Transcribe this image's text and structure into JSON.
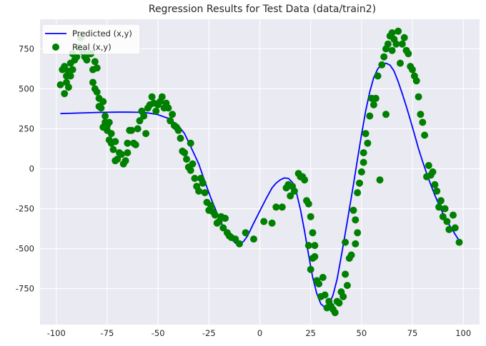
{
  "chart_data": {
    "type": "scatter",
    "title": "Regression Results for Test Data (data/train2)",
    "xlabel": "",
    "ylabel": "",
    "xlim": [
      -108,
      108
    ],
    "ylim": [
      -975,
      935
    ],
    "xticks": [
      -100,
      -75,
      -50,
      -25,
      0,
      25,
      50,
      75,
      100
    ],
    "yticks": [
      -750,
      -500,
      -250,
      0,
      250,
      500,
      750
    ],
    "grid": true,
    "legend_position": "top-left",
    "colors": {
      "background": "#eaeaf2",
      "grid": "#ffffff",
      "line": "#0000ff",
      "points": "#008000"
    },
    "series": [
      {
        "name": "Predicted (x,y)",
        "kind": "line",
        "x": [
          -98,
          -95,
          -90,
          -85,
          -80,
          -75,
          -70,
          -65,
          -60,
          -55,
          -50,
          -45,
          -40,
          -37,
          -34,
          -30,
          -27,
          -24,
          -20,
          -17,
          -14,
          -12,
          -10,
          -8,
          -6,
          -3,
          0,
          3,
          6,
          8,
          10,
          12,
          14,
          16,
          18,
          20,
          22,
          24,
          26,
          28,
          30,
          32,
          34,
          36,
          38,
          40,
          43,
          46,
          48,
          50,
          52,
          54,
          56,
          58,
          60,
          62,
          64,
          66,
          68,
          70,
          72,
          74,
          76,
          78,
          80,
          82,
          84,
          86,
          88,
          90,
          93,
          96,
          98
        ],
        "y": [
          345,
          346,
          348,
          350,
          352,
          353,
          354,
          354,
          353,
          349,
          338,
          315,
          270,
          220,
          140,
          30,
          -80,
          -185,
          -310,
          -390,
          -440,
          -465,
          -470,
          -455,
          -420,
          -340,
          -265,
          -190,
          -120,
          -90,
          -70,
          -58,
          -60,
          -85,
          -150,
          -255,
          -390,
          -540,
          -680,
          -780,
          -845,
          -868,
          -850,
          -790,
          -690,
          -550,
          -330,
          -100,
          60,
          215,
          360,
          480,
          570,
          625,
          652,
          660,
          648,
          610,
          545,
          470,
          390,
          305,
          215,
          125,
          45,
          -30,
          -100,
          -165,
          -225,
          -280,
          -350,
          -410,
          -450
        ]
      },
      {
        "name": "Real (x,y)",
        "kind": "scatter",
        "points": [
          [
            -98,
            525
          ],
          [
            -97,
            620
          ],
          [
            -96,
            640
          ],
          [
            -96,
            470
          ],
          [
            -95,
            580
          ],
          [
            -95,
            540
          ],
          [
            -94,
            610
          ],
          [
            -94,
            510
          ],
          [
            -93,
            660
          ],
          [
            -93,
            580
          ],
          [
            -92,
            720
          ],
          [
            -92,
            620
          ],
          [
            -91,
            680
          ],
          [
            -90,
            700
          ],
          [
            -89,
            760
          ],
          [
            -88,
            820
          ],
          [
            -87,
            730
          ],
          [
            -86,
            700
          ],
          [
            -85,
            680
          ],
          [
            -84,
            720
          ],
          [
            -83,
            720
          ],
          [
            -82,
            620
          ],
          [
            -82,
            540
          ],
          [
            -81,
            670
          ],
          [
            -81,
            500
          ],
          [
            -80,
            630
          ],
          [
            -80,
            480
          ],
          [
            -79,
            440
          ],
          [
            -79,
            390
          ],
          [
            -78,
            380
          ],
          [
            -77,
            420
          ],
          [
            -77,
            260
          ],
          [
            -76,
            290
          ],
          [
            -76,
            330
          ],
          [
            -75,
            270
          ],
          [
            -75,
            240
          ],
          [
            -74,
            180
          ],
          [
            -74,
            290
          ],
          [
            -73,
            160
          ],
          [
            -73,
            220
          ],
          [
            -72,
            120
          ],
          [
            -71,
            170
          ],
          [
            -71,
            50
          ],
          [
            -70,
            60
          ],
          [
            -69,
            100
          ],
          [
            -68,
            90
          ],
          [
            -67,
            30
          ],
          [
            -66,
            50
          ],
          [
            -65,
            100
          ],
          [
            -65,
            160
          ],
          [
            -64,
            240
          ],
          [
            -63,
            240
          ],
          [
            -62,
            160
          ],
          [
            -61,
            150
          ],
          [
            -60,
            250
          ],
          [
            -59,
            300
          ],
          [
            -58,
            360
          ],
          [
            -57,
            330
          ],
          [
            -56,
            220
          ],
          [
            -55,
            380
          ],
          [
            -54,
            400
          ],
          [
            -53,
            450
          ],
          [
            -52,
            410
          ],
          [
            -51,
            360
          ],
          [
            -50,
            400
          ],
          [
            -49,
            420
          ],
          [
            -48,
            450
          ],
          [
            -47,
            380
          ],
          [
            -46,
            410
          ],
          [
            -45,
            380
          ],
          [
            -44,
            300
          ],
          [
            -43,
            340
          ],
          [
            -42,
            270
          ],
          [
            -41,
            260
          ],
          [
            -40,
            240
          ],
          [
            -39,
            190
          ],
          [
            -38,
            110
          ],
          [
            -37,
            100
          ],
          [
            -36,
            60
          ],
          [
            -35,
            10
          ],
          [
            -34,
            -10
          ],
          [
            -34,
            160
          ],
          [
            -33,
            30
          ],
          [
            -32,
            -60
          ],
          [
            -31,
            -110
          ],
          [
            -30,
            -140
          ],
          [
            -29,
            -60
          ],
          [
            -28,
            -90
          ],
          [
            -27,
            -150
          ],
          [
            -26,
            -210
          ],
          [
            -25,
            -260
          ],
          [
            -24,
            -230
          ],
          [
            -23,
            -270
          ],
          [
            -22,
            -290
          ],
          [
            -21,
            -340
          ],
          [
            -20,
            -330
          ],
          [
            -19,
            -300
          ],
          [
            -18,
            -370
          ],
          [
            -17,
            -310
          ],
          [
            -16,
            -400
          ],
          [
            -15,
            -420
          ],
          [
            -14,
            -430
          ],
          [
            -12,
            -440
          ],
          [
            -10,
            -470
          ],
          [
            -7,
            -400
          ],
          [
            -3,
            -440
          ],
          [
            2,
            -330
          ],
          [
            6,
            -340
          ],
          [
            8,
            -240
          ],
          [
            11,
            -240
          ],
          [
            13,
            -120
          ],
          [
            14,
            -100
          ],
          [
            15,
            -170
          ],
          [
            16,
            -110
          ],
          [
            17,
            -140
          ],
          [
            19,
            -30
          ],
          [
            20,
            -50
          ],
          [
            21,
            -50
          ],
          [
            22,
            -70
          ],
          [
            23,
            -200
          ],
          [
            24,
            -220
          ],
          [
            24,
            -480
          ],
          [
            25,
            -300
          ],
          [
            25,
            -630
          ],
          [
            26,
            -400
          ],
          [
            26,
            -560
          ],
          [
            27,
            -480
          ],
          [
            27,
            -550
          ],
          [
            28,
            -700
          ],
          [
            29,
            -720
          ],
          [
            30,
            -800
          ],
          [
            31,
            -680
          ],
          [
            32,
            -790
          ],
          [
            33,
            -870
          ],
          [
            34,
            -830
          ],
          [
            35,
            -860
          ],
          [
            36,
            -880
          ],
          [
            37,
            -900
          ],
          [
            38,
            -830
          ],
          [
            39,
            -840
          ],
          [
            40,
            -770
          ],
          [
            41,
            -800
          ],
          [
            42,
            -660
          ],
          [
            42,
            -460
          ],
          [
            43,
            -730
          ],
          [
            44,
            -560
          ],
          [
            45,
            -540
          ],
          [
            46,
            -260
          ],
          [
            47,
            -320
          ],
          [
            47,
            -470
          ],
          [
            48,
            -400
          ],
          [
            48,
            -150
          ],
          [
            49,
            -90
          ],
          [
            50,
            -20
          ],
          [
            51,
            40
          ],
          [
            51,
            100
          ],
          [
            52,
            220
          ],
          [
            53,
            160
          ],
          [
            54,
            330
          ],
          [
            55,
            440
          ],
          [
            56,
            400
          ],
          [
            57,
            440
          ],
          [
            58,
            580
          ],
          [
            59,
            -70
          ],
          [
            60,
            650
          ],
          [
            61,
            700
          ],
          [
            62,
            750
          ],
          [
            62,
            340
          ],
          [
            63,
            780
          ],
          [
            64,
            830
          ],
          [
            65,
            850
          ],
          [
            65,
            740
          ],
          [
            66,
            810
          ],
          [
            67,
            780
          ],
          [
            68,
            860
          ],
          [
            69,
            660
          ],
          [
            70,
            780
          ],
          [
            71,
            820
          ],
          [
            72,
            740
          ],
          [
            73,
            720
          ],
          [
            74,
            640
          ],
          [
            75,
            620
          ],
          [
            76,
            580
          ],
          [
            77,
            550
          ],
          [
            78,
            450
          ],
          [
            79,
            340
          ],
          [
            80,
            290
          ],
          [
            81,
            210
          ],
          [
            82,
            -50
          ],
          [
            83,
            20
          ],
          [
            84,
            -40
          ],
          [
            85,
            -20
          ],
          [
            86,
            -100
          ],
          [
            87,
            -140
          ],
          [
            88,
            -240
          ],
          [
            89,
            -200
          ],
          [
            90,
            -300
          ],
          [
            91,
            -250
          ],
          [
            92,
            -330
          ],
          [
            93,
            -380
          ],
          [
            95,
            -290
          ],
          [
            96,
            -370
          ],
          [
            98,
            -460
          ]
        ]
      }
    ]
  }
}
